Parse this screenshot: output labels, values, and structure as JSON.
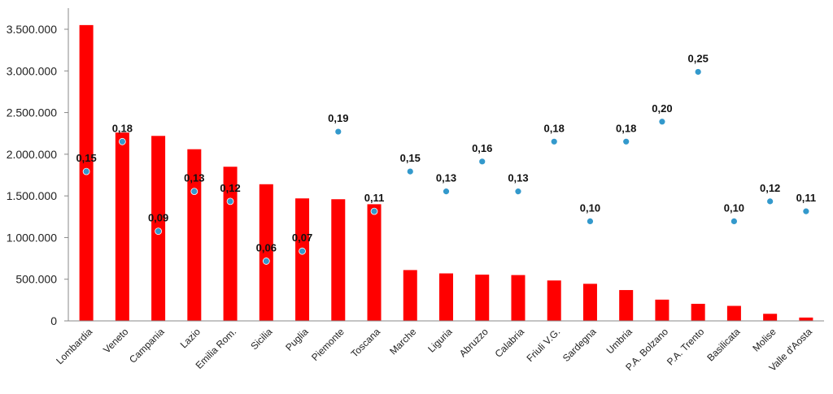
{
  "chart_data": {
    "type": "bar",
    "title": "",
    "xlabel": "",
    "ylabel": "",
    "ylim": [
      0,
      3500000
    ],
    "yticks": [
      "0",
      "500.000",
      "1.000.000",
      "1.500.000",
      "2.000.000",
      "2.500.000",
      "3.000.000",
      "3.500.000"
    ],
    "grid": false,
    "legend": "none",
    "categories": [
      "Lombardia",
      "Veneto",
      "Campania",
      "Lazio",
      "Emilia Rom.",
      "Sicilia",
      "Puglia",
      "Piemonte",
      "Toscana",
      "Marche",
      "Liguria",
      "Abruzzo",
      "Calabria",
      "Friuli V.G.",
      "Sardegna",
      "Umbria",
      "P.A. Bolzano",
      "P.A. Trento",
      "Basilicata",
      "Molise",
      "Valle d'Aosta"
    ],
    "series": [
      {
        "type": "bar",
        "color": "#ff0000",
        "values": [
          3550000,
          2260000,
          2220000,
          2060000,
          1850000,
          1640000,
          1470000,
          1460000,
          1400000,
          610000,
          570000,
          555000,
          550000,
          485000,
          445000,
          370000,
          255000,
          205000,
          180000,
          85000,
          40000
        ]
      },
      {
        "type": "scatter",
        "color": "#3399cc",
        "values": [
          0.15,
          0.18,
          0.09,
          0.13,
          0.12,
          0.06,
          0.07,
          0.19,
          0.11,
          0.15,
          0.13,
          0.16,
          0.13,
          0.18,
          0.1,
          0.18,
          0.2,
          0.25,
          0.1,
          0.12,
          0.11
        ],
        "labels": [
          "0,15",
          "0,18",
          "0,09",
          "0,13",
          "0,12",
          "0,06",
          "0,07",
          "0,19",
          "0,11",
          "0,15",
          "0,13",
          "0,16",
          "0,13",
          "0,18",
          "0,10",
          "0,18",
          "0,20",
          "0,25",
          "0,10",
          "0,12",
          "0,11"
        ]
      }
    ]
  }
}
